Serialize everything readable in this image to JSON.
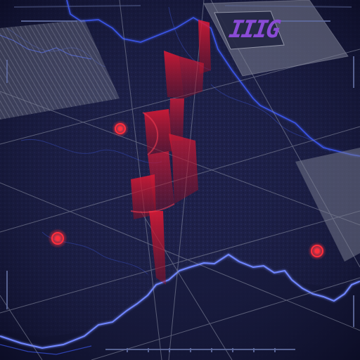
{
  "scene": {
    "logo_text": "IIIG",
    "colors": {
      "background": "#14163a",
      "terrain_dark": "#1c1f45",
      "border_line": "#3b55e6",
      "border_glow": "#6f86ff",
      "grid_line": "#8e93a6",
      "hologram_red": "#e01a35",
      "marker": "#ff2e3c",
      "panel_fill": "#7b7f91",
      "hud_frame": "#5e6a9c",
      "logo": "#8a4bd6"
    },
    "markers": [
      {
        "id": "marker-1",
        "label": ""
      },
      {
        "id": "marker-2",
        "label": ""
      },
      {
        "id": "marker-3",
        "label": ""
      }
    ],
    "icons": [
      "target-marker-icon",
      "hud-corner-bracket-icon",
      "logo-glyph-icon"
    ]
  }
}
